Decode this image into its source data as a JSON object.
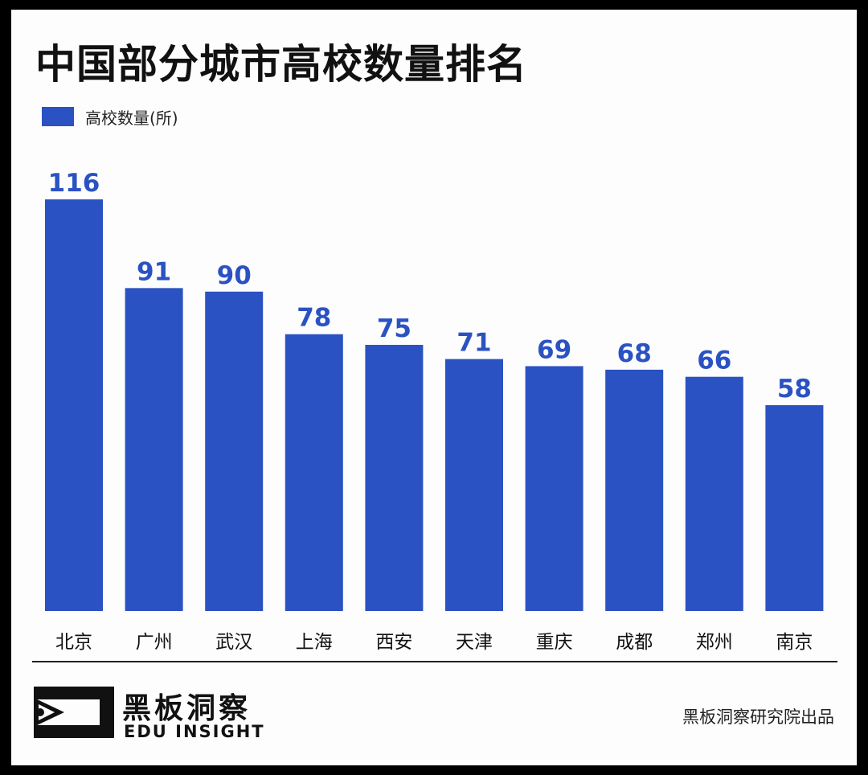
{
  "title": "中国部分城市高校数量排名",
  "legend": {
    "label": "高校数量(所)"
  },
  "colors": {
    "bar": "#2b52c3",
    "value_label": "#2b52c3"
  },
  "chart_data": {
    "type": "bar",
    "categories": [
      "北京",
      "广州",
      "武汉",
      "上海",
      "西安",
      "天津",
      "重庆",
      "成都",
      "郑州",
      "南京"
    ],
    "series": [
      {
        "name": "高校数量(所)",
        "values": [
          116,
          91,
          90,
          78,
          75,
          71,
          69,
          68,
          66,
          58
        ]
      }
    ],
    "ylim": [
      0,
      116
    ]
  },
  "footer": {
    "brand_cn": "黑板洞察",
    "brand_en": "EDU INSIGHT",
    "credit": "黑板洞察研究院出品",
    "logo_icon": "eye-bracket-logo-icon"
  }
}
